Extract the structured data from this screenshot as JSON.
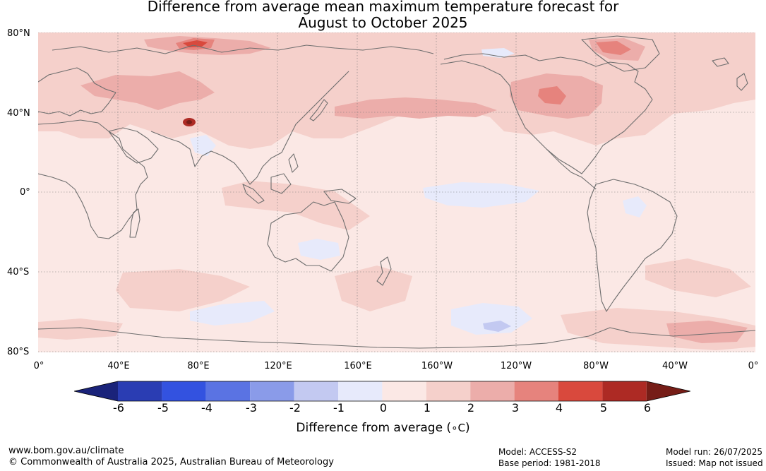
{
  "title": {
    "line1": "Difference from average mean maximum temperature forecast for",
    "line2": "August to October 2025"
  },
  "map": {
    "lat_labels": [
      "80°N",
      "40°N",
      "0°",
      "40°S",
      "80°S"
    ],
    "lon_labels": [
      "0°",
      "40°E",
      "80°E",
      "120°E",
      "160°E",
      "160°W",
      "120°W",
      "80°W",
      "40°W",
      "0°"
    ],
    "gridlines": true,
    "base_fill_color": "#fbe8e5",
    "coastline_color": "#6e6e6e"
  },
  "colorbar": {
    "tick_labels": [
      "-6",
      "-5",
      "-4",
      "-3",
      "-2",
      "-1",
      "0",
      "1",
      "2",
      "3",
      "4",
      "5",
      "6"
    ],
    "colors": [
      "#1a237a",
      "#2a3db3",
      "#3352e0",
      "#5a73e3",
      "#8a9be9",
      "#c3c9f1",
      "#e7eafb",
      "#fbe8e5",
      "#f5d0cb",
      "#ecadaa",
      "#e6837d",
      "#d9493d",
      "#ad2a24",
      "#761d17"
    ],
    "label": "Difference from average (",
    "label_unit": "∘C",
    "label_close": ")"
  },
  "footer": {
    "url": "www.bom.gov.au/climate",
    "copyright": "© Commonwealth of Australia 2025, Australian Bureau of Meteorology",
    "model": "Model: ACCESS-S2",
    "base_period": "Base period: 1981-2018",
    "model_run": "Model run: 26/07/2025",
    "issued": "Issued: Map not issued"
  }
}
